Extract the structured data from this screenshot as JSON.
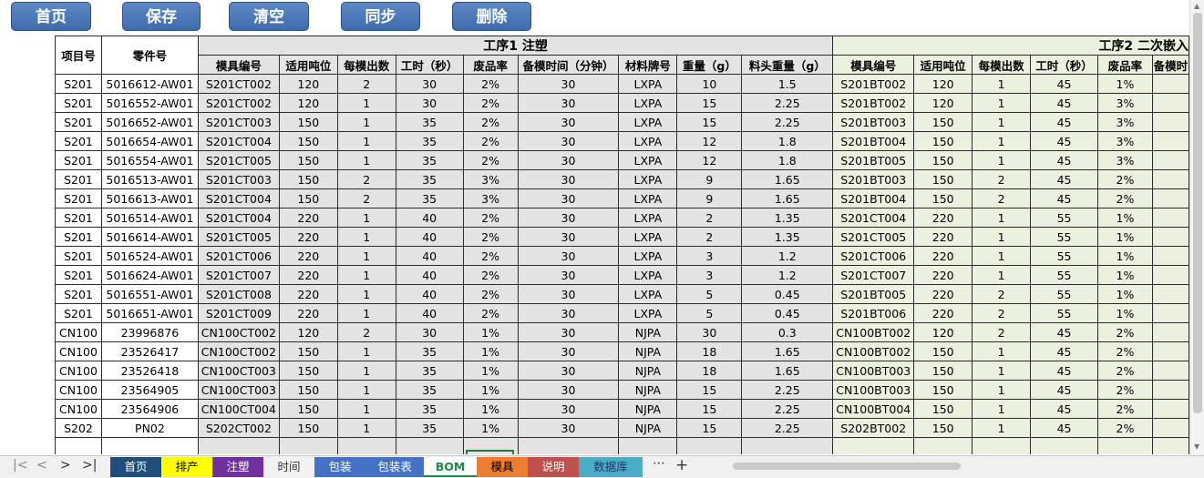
{
  "toolbar": {
    "buttons": [
      "首页",
      "保存",
      "清空",
      "同步",
      "删除"
    ]
  },
  "sheet": {
    "col_headers_left": [
      "项目号",
      "零件号"
    ],
    "process1": {
      "title": "工序1 注塑",
      "columns": [
        "模具编号",
        "适用吨位",
        "每模出数",
        "工时（秒）",
        "废品率",
        "备模时间（分钟）",
        "材料牌号",
        "重量（g）",
        "料头重量（g）"
      ]
    },
    "process2": {
      "title": "工序2  二次嵌入",
      "columns": [
        "模具编号",
        "适用吨位",
        "每模出数",
        "工时（秒）",
        "废品率",
        "备模时"
      ]
    },
    "rows": [
      [
        "S201",
        "5016612-AW01",
        "S201CT002",
        "120",
        "2",
        "30",
        "2%",
        "30",
        "LXPA",
        "10",
        "1.5",
        "S201BT002",
        "120",
        "1",
        "45",
        "1%"
      ],
      [
        "S201",
        "5016552-AW01",
        "S201CT002",
        "120",
        "1",
        "30",
        "2%",
        "30",
        "LXPA",
        "15",
        "2.25",
        "S201BT002",
        "120",
        "1",
        "45",
        "3%"
      ],
      [
        "S201",
        "5016652-AW01",
        "S201CT003",
        "150",
        "1",
        "35",
        "2%",
        "30",
        "LXPA",
        "15",
        "2.25",
        "S201BT003",
        "150",
        "1",
        "45",
        "3%"
      ],
      [
        "S201",
        "5016654-AW01",
        "S201CT004",
        "150",
        "1",
        "35",
        "2%",
        "30",
        "LXPA",
        "12",
        "1.8",
        "S201BT004",
        "150",
        "1",
        "45",
        "3%"
      ],
      [
        "S201",
        "5016554-AW01",
        "S201CT005",
        "150",
        "1",
        "35",
        "2%",
        "30",
        "LXPA",
        "12",
        "1.8",
        "S201BT005",
        "150",
        "1",
        "45",
        "3%"
      ],
      [
        "S201",
        "5016513-AW01",
        "S201CT003",
        "150",
        "2",
        "35",
        "3%",
        "30",
        "LXPA",
        "9",
        "1.65",
        "S201BT003",
        "150",
        "2",
        "45",
        "2%"
      ],
      [
        "S201",
        "5016613-AW01",
        "S201CT004",
        "150",
        "2",
        "35",
        "3%",
        "30",
        "LXPA",
        "9",
        "1.65",
        "S201BT004",
        "150",
        "2",
        "45",
        "2%"
      ],
      [
        "S201",
        "5016514-AW01",
        "S201CT004",
        "220",
        "1",
        "40",
        "2%",
        "30",
        "LXPA",
        "2",
        "1.35",
        "S201CT004",
        "220",
        "1",
        "55",
        "1%"
      ],
      [
        "S201",
        "5016614-AW01",
        "S201CT005",
        "220",
        "1",
        "40",
        "2%",
        "30",
        "LXPA",
        "2",
        "1.35",
        "S201CT005",
        "220",
        "1",
        "55",
        "1%"
      ],
      [
        "S201",
        "5016524-AW01",
        "S201CT006",
        "220",
        "1",
        "40",
        "2%",
        "30",
        "LXPA",
        "3",
        "1.2",
        "S201CT006",
        "220",
        "1",
        "55",
        "1%"
      ],
      [
        "S201",
        "5016624-AW01",
        "S201CT007",
        "220",
        "1",
        "40",
        "2%",
        "30",
        "LXPA",
        "3",
        "1.2",
        "S201CT007",
        "220",
        "1",
        "55",
        "1%"
      ],
      [
        "S201",
        "5016551-AW01",
        "S201CT008",
        "220",
        "1",
        "40",
        "2%",
        "30",
        "LXPA",
        "5",
        "0.45",
        "S201BT005",
        "220",
        "2",
        "55",
        "1%"
      ],
      [
        "S201",
        "5016651-AW01",
        "S201CT009",
        "220",
        "1",
        "40",
        "2%",
        "30",
        "LXPA",
        "5",
        "0.45",
        "S201BT006",
        "220",
        "2",
        "55",
        "1%"
      ],
      [
        "CN100",
        "23996876",
        "CN100CT002",
        "120",
        "2",
        "30",
        "1%",
        "30",
        "NJPA",
        "30",
        "0.3",
        "CN100BT002",
        "120",
        "2",
        "45",
        "2%"
      ],
      [
        "CN100",
        "23526417",
        "CN100CT002",
        "150",
        "1",
        "35",
        "1%",
        "30",
        "NJPA",
        "18",
        "1.65",
        "CN100BT002",
        "150",
        "1",
        "45",
        "2%"
      ],
      [
        "CN100",
        "23526418",
        "CN100CT003",
        "150",
        "1",
        "35",
        "1%",
        "30",
        "NJPA",
        "18",
        "1.65",
        "CN100BT003",
        "150",
        "1",
        "45",
        "2%"
      ],
      [
        "CN100",
        "23564905",
        "CN100CT003",
        "150",
        "1",
        "35",
        "1%",
        "30",
        "NJPA",
        "15",
        "2.25",
        "CN100BT003",
        "150",
        "1",
        "45",
        "2%"
      ],
      [
        "CN100",
        "23564906",
        "CN100CT004",
        "150",
        "1",
        "35",
        "1%",
        "30",
        "NJPA",
        "15",
        "2.25",
        "CN100BT004",
        "150",
        "1",
        "45",
        "2%"
      ],
      [
        "S202",
        "PN02",
        "S202CT002",
        "150",
        "1",
        "35",
        "1%",
        "30",
        "NJPA",
        "15",
        "2.25",
        "S202BT002",
        "150",
        "1",
        "45",
        "2%"
      ]
    ],
    "empty_rows": 3
  },
  "tabs": [
    {
      "label": "首页",
      "bg": "#1f4e79",
      "fg": "#ffffff"
    },
    {
      "label": "排产",
      "bg": "#ffff00",
      "fg": "#000000"
    },
    {
      "label": "注塑",
      "bg": "#7030a0",
      "fg": "#ffffff"
    },
    {
      "label": "时间",
      "bg": "#f2f2f2",
      "fg": "#333333"
    },
    {
      "label": "包装",
      "bg": "#4472c4",
      "fg": "#ffffff"
    },
    {
      "label": "包装表",
      "bg": "#4472c4",
      "fg": "#ffffff"
    },
    {
      "label": "BOM",
      "bg": "#ffffff",
      "fg": "#1f8a45",
      "active": true
    },
    {
      "label": "模具",
      "bg": "#ed7d31",
      "fg": "#000000"
    },
    {
      "label": "说明",
      "bg": "#c0504d",
      "fg": "#ffffff"
    },
    {
      "label": "数据库",
      "bg": "#4bacc6",
      "fg": "#1f3864"
    }
  ],
  "tabbar": {
    "more": "⋯",
    "add": "+"
  },
  "colors": {
    "button": "#4a78b8",
    "process1_fill": "#e3e3e3",
    "process2_fill": "#ebf1de",
    "selection": "#1f7a45"
  }
}
